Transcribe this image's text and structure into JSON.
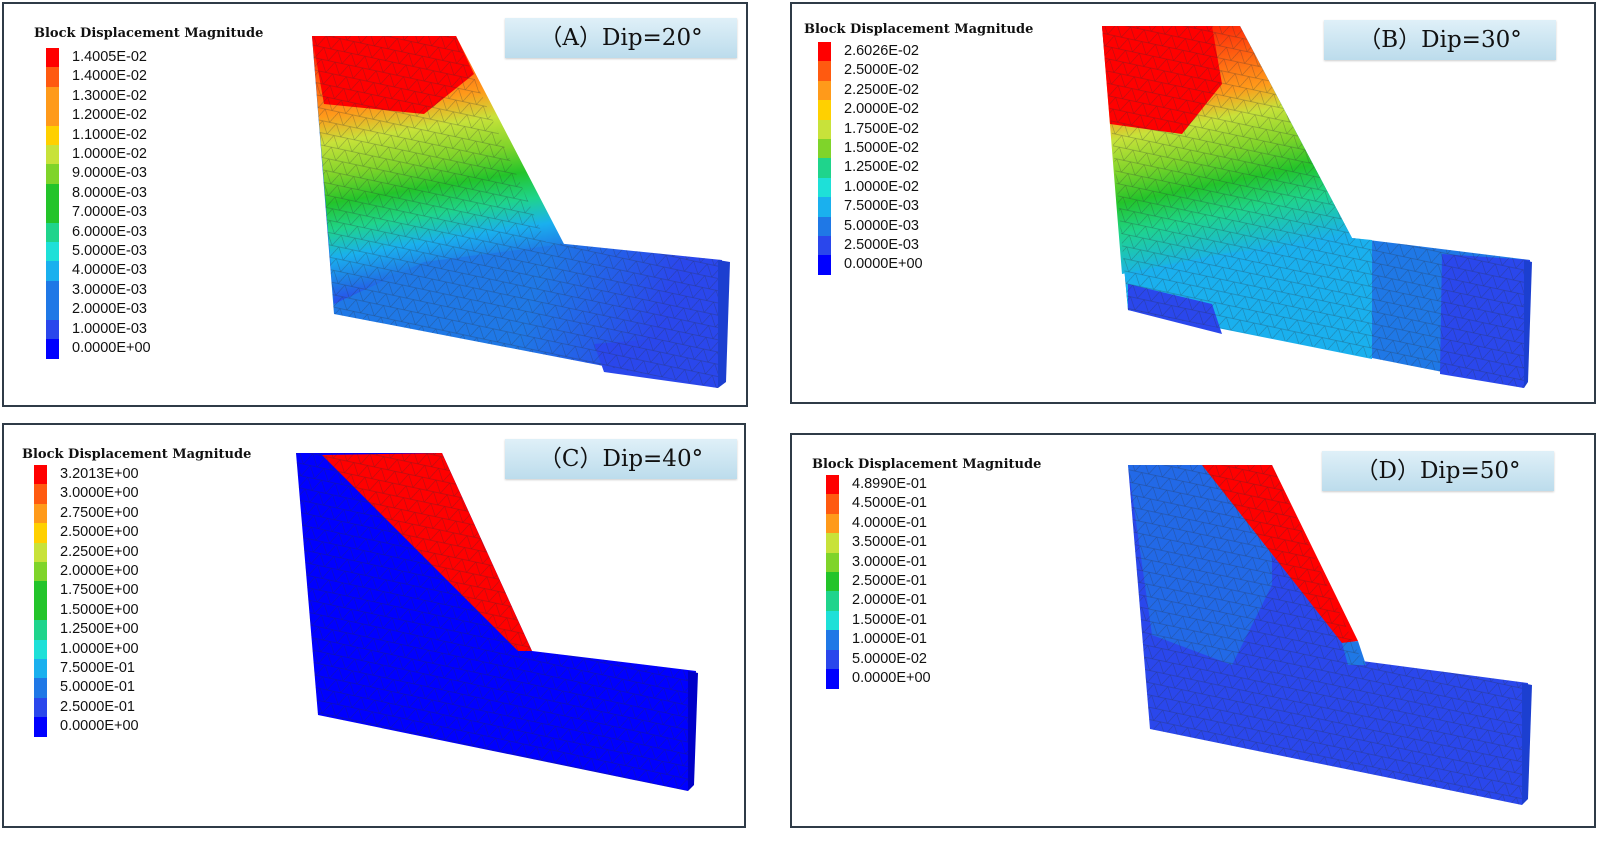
{
  "legend_colors": [
    "#ff0000",
    "#ff5a10",
    "#ff9a1a",
    "#ffd000",
    "#c8e23a",
    "#7fd42a",
    "#23c42a",
    "#1fd48c",
    "#1ee0d8",
    "#1ab0ee",
    "#1f78e6",
    "#2a47ec",
    "#0000ff"
  ],
  "mesh_color": "#2a2f36",
  "panels": [
    {
      "id": "A",
      "title": "Block Displacement Magnitude",
      "label": "（A）Dip=20°",
      "legend_values": [
        "1.4005E-02",
        "1.4000E-02",
        "1.3000E-02",
        "1.2000E-02",
        "1.1000E-02",
        "1.0000E-02",
        "9.0000E-03",
        "8.0000E-03",
        "7.0000E-03",
        "6.0000E-03",
        "5.0000E-03",
        "4.0000E-03",
        "3.0000E-03",
        "2.0000E-03",
        "1.0000E-03",
        "0.0000E+00"
      ]
    },
    {
      "id": "B",
      "title": "Block Displacement Magnitude",
      "label": "（B）Dip=30°",
      "legend_values": [
        "2.6026E-02",
        "2.5000E-02",
        "2.2500E-02",
        "2.0000E-02",
        "1.7500E-02",
        "1.5000E-02",
        "1.2500E-02",
        "1.0000E-02",
        "7.5000E-03",
        "5.0000E-03",
        "2.5000E-03",
        "0.0000E+00"
      ]
    },
    {
      "id": "C",
      "title": "Block Displacement Magnitude",
      "label": "（C）Dip=40°",
      "legend_values": [
        "3.2013E+00",
        "3.0000E+00",
        "2.7500E+00",
        "2.5000E+00",
        "2.2500E+00",
        "2.0000E+00",
        "1.7500E+00",
        "1.5000E+00",
        "1.2500E+00",
        "1.0000E+00",
        "7.5000E-01",
        "5.0000E-01",
        "2.5000E-01",
        "0.0000E+00"
      ]
    },
    {
      "id": "D",
      "title": "Block Displacement Magnitude",
      "label": "（D）Dip=50°",
      "legend_values": [
        "4.8990E-01",
        "4.5000E-01",
        "4.0000E-01",
        "3.5000E-01",
        "3.0000E-01",
        "2.5000E-01",
        "2.0000E-01",
        "1.5000E-01",
        "1.0000E-01",
        "5.0000E-02",
        "0.0000E+00"
      ]
    }
  ]
}
